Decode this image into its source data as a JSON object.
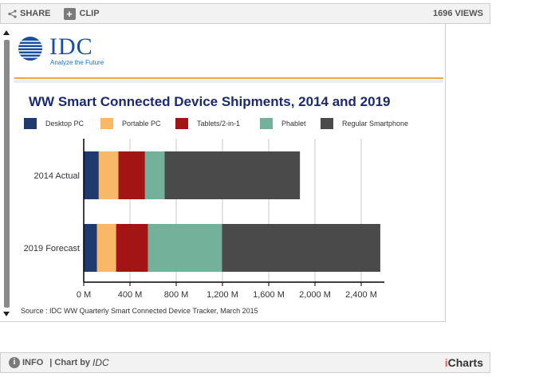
{
  "toolbar": {
    "share_label": "SHARE",
    "clip_label": "CLIP",
    "views_label": "1696 VIEWS"
  },
  "logo": {
    "text": "IDC",
    "tagline": "Analyze the Future"
  },
  "footer": {
    "info_label": "INFO",
    "chart_by_label": "| Chart by",
    "chart_by_brand": "IDC",
    "brand_i": "i",
    "brand_rest": "Charts"
  },
  "colors": {
    "accent_rule": "#f0a63a",
    "title": "#1a2a6c"
  },
  "chart_data": {
    "type": "bar",
    "orientation": "horizontal",
    "stacked": true,
    "title": "WW Smart Connected Device Shipments, 2014 and 2019",
    "categories": [
      "2014 Actual",
      "2019 Forecast"
    ],
    "series": [
      {
        "name": "Desktop PC",
        "color": "#1f3a6d",
        "values": [
          130,
          115
        ]
      },
      {
        "name": "Portable PC",
        "color": "#f9b868",
        "values": [
          170,
          165
        ]
      },
      {
        "name": "Tablets/2-in-1",
        "color": "#a31414",
        "values": [
          230,
          275
        ]
      },
      {
        "name": "Phablet",
        "color": "#74b19a",
        "values": [
          170,
          640
        ]
      },
      {
        "name": "Regular Smartphone",
        "color": "#4a4a4a",
        "values": [
          1170,
          1370
        ]
      }
    ],
    "xlim": [
      0,
      2600
    ],
    "x_ticks": [
      0,
      400,
      800,
      1200,
      1600,
      2000,
      2400
    ],
    "x_tick_labels": [
      "0 M",
      "400 M",
      "800 M",
      "1,200 M",
      "1,600 M",
      "2,000 M",
      "2,400 M"
    ],
    "grid": true,
    "legend_position": "top",
    "source": "Source : IDC WW Quarterly Smart Connected Device Tracker, March 2015"
  }
}
